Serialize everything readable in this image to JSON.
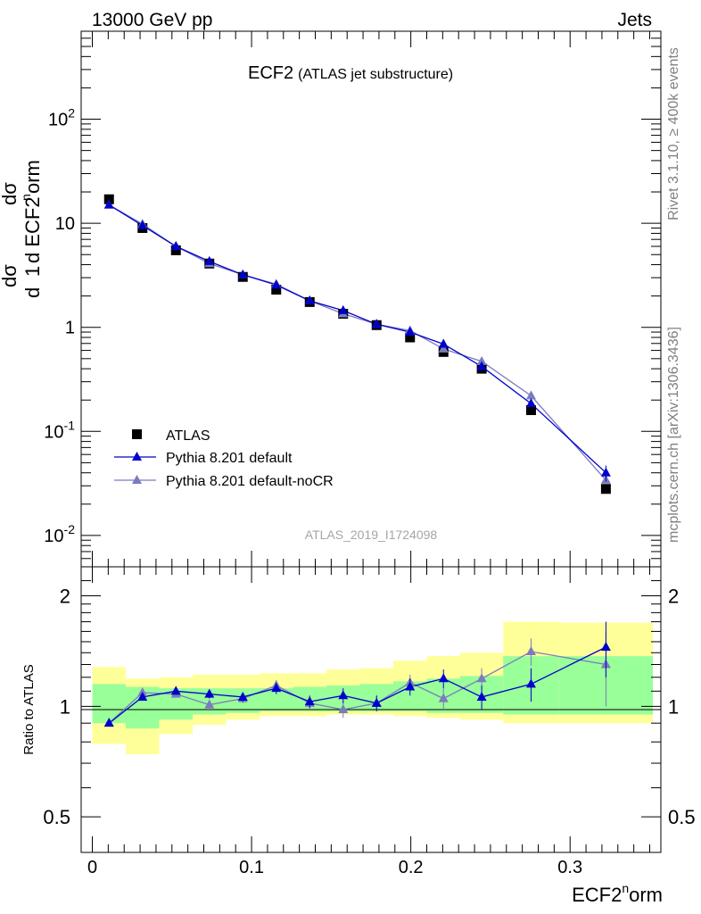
{
  "header": {
    "left": "13000 GeV pp",
    "right": "Jets"
  },
  "side_labels": {
    "version": "Rivet 3.1.10, ≥ 400k events",
    "source": "mcplots.cern.ch [arXiv:1306.3436]"
  },
  "colors": {
    "data": "#000000",
    "mc1": "#0000cc",
    "mc2": "#7b7bbf",
    "band_outer": "#ffff99",
    "band_inner": "#99ff99"
  },
  "chart_data": [
    {
      "type": "line",
      "title": "ECF2",
      "subtitle": "(ATLAS jet substructure)",
      "ylabel": "1/σ dσ/d ECF2^norm",
      "xlabel": "ECF2^norm",
      "analysis_id": "ATLAS_2019_I1724098",
      "yscale": "log",
      "xlim": [
        -0.007,
        0.357
      ],
      "ylim": [
        0.005,
        700
      ],
      "ytick_labels": [
        "10^-2",
        "10^-1",
        "1",
        "10",
        "10^2"
      ],
      "legend_placement": "lower-left",
      "x": [
        0.0105,
        0.0315,
        0.0525,
        0.0735,
        0.0945,
        0.1155,
        0.1365,
        0.1575,
        0.1785,
        0.1995,
        0.2205,
        0.2445,
        0.2755,
        0.3225
      ],
      "series": [
        {
          "name": "ATLAS",
          "marker": "square",
          "values": [
            17.0,
            9.0,
            5.5,
            4.1,
            3.05,
            2.3,
            1.75,
            1.35,
            1.05,
            0.8,
            0.58,
            0.4,
            0.16,
            0.028
          ]
        },
        {
          "name": "Pythia 8.201 default",
          "marker": "triangle",
          "values": [
            15.0,
            9.5,
            6.0,
            4.3,
            3.2,
            2.55,
            1.8,
            1.45,
            1.07,
            0.9,
            0.69,
            0.42,
            0.185,
            0.04
          ]
        },
        {
          "name": "Pythia 8.201 default-noCR",
          "marker": "triangle",
          "values": [
            15.0,
            9.8,
            6.0,
            4.1,
            3.2,
            2.6,
            1.8,
            1.35,
            1.07,
            0.93,
            0.62,
            0.47,
            0.22,
            0.034
          ]
        }
      ]
    },
    {
      "type": "line",
      "ylabel": "Ratio to ATLAS",
      "xlabel": "ECF2^norm",
      "xlim": [
        -0.007,
        0.357
      ],
      "ylim": [
        0.4,
        2.4
      ],
      "ytick_labels": [
        "0.5",
        "1",
        "2"
      ],
      "xtick_labels": [
        "0",
        "0.1",
        "0.2",
        "0.3"
      ],
      "reference": 1,
      "bins": [
        [
          0,
          0.021
        ],
        [
          0.021,
          0.042
        ],
        [
          0.042,
          0.063
        ],
        [
          0.063,
          0.084
        ],
        [
          0.084,
          0.105
        ],
        [
          0.105,
          0.126
        ],
        [
          0.126,
          0.147
        ],
        [
          0.147,
          0.168
        ],
        [
          0.168,
          0.189
        ],
        [
          0.189,
          0.21
        ],
        [
          0.21,
          0.231
        ],
        [
          0.231,
          0.258
        ],
        [
          0.258,
          0.293
        ],
        [
          0.293,
          0.352
        ]
      ],
      "band_outer": [
        [
          0.79,
          1.28
        ],
        [
          0.74,
          1.19
        ],
        [
          0.84,
          1.2
        ],
        [
          0.89,
          1.22
        ],
        [
          0.92,
          1.22
        ],
        [
          0.94,
          1.23
        ],
        [
          0.94,
          1.23
        ],
        [
          0.95,
          1.26
        ],
        [
          0.95,
          1.27
        ],
        [
          0.94,
          1.33
        ],
        [
          0.93,
          1.37
        ],
        [
          0.92,
          1.4
        ],
        [
          0.9,
          1.7
        ],
        [
          0.9,
          1.69
        ]
      ],
      "band_inner": [
        [
          0.9,
          1.15
        ],
        [
          0.87,
          1.13
        ],
        [
          0.92,
          1.12
        ],
        [
          0.95,
          1.12
        ],
        [
          0.96,
          1.12
        ],
        [
          0.97,
          1.12
        ],
        [
          0.97,
          1.13
        ],
        [
          0.97,
          1.14
        ],
        [
          0.97,
          1.15
        ],
        [
          0.97,
          1.17
        ],
        [
          0.96,
          1.19
        ],
        [
          0.96,
          1.21
        ],
        [
          0.95,
          1.37
        ],
        [
          0.95,
          1.37
        ]
      ],
      "series": [
        {
          "name": "Pythia 8.201 default",
          "values": [
            0.9,
            1.06,
            1.1,
            1.08,
            1.06,
            1.12,
            1.03,
            1.07,
            1.02,
            1.13,
            1.19,
            1.06,
            1.15,
            1.45
          ],
          "errors": [
            0.01,
            0.02,
            0.02,
            0.03,
            0.03,
            0.04,
            0.04,
            0.05,
            0.05,
            0.06,
            0.07,
            0.08,
            0.12,
            0.25
          ]
        },
        {
          "name": "Pythia 8.201 default-noCR",
          "values": [
            0.9,
            1.09,
            1.08,
            1.01,
            1.05,
            1.14,
            1.02,
            0.98,
            1.02,
            1.16,
            1.05,
            1.19,
            1.41,
            1.3
          ],
          "errors": [
            0.01,
            0.02,
            0.02,
            0.03,
            0.03,
            0.04,
            0.04,
            0.05,
            0.05,
            0.06,
            0.07,
            0.08,
            0.12,
            0.3
          ]
        }
      ]
    }
  ]
}
